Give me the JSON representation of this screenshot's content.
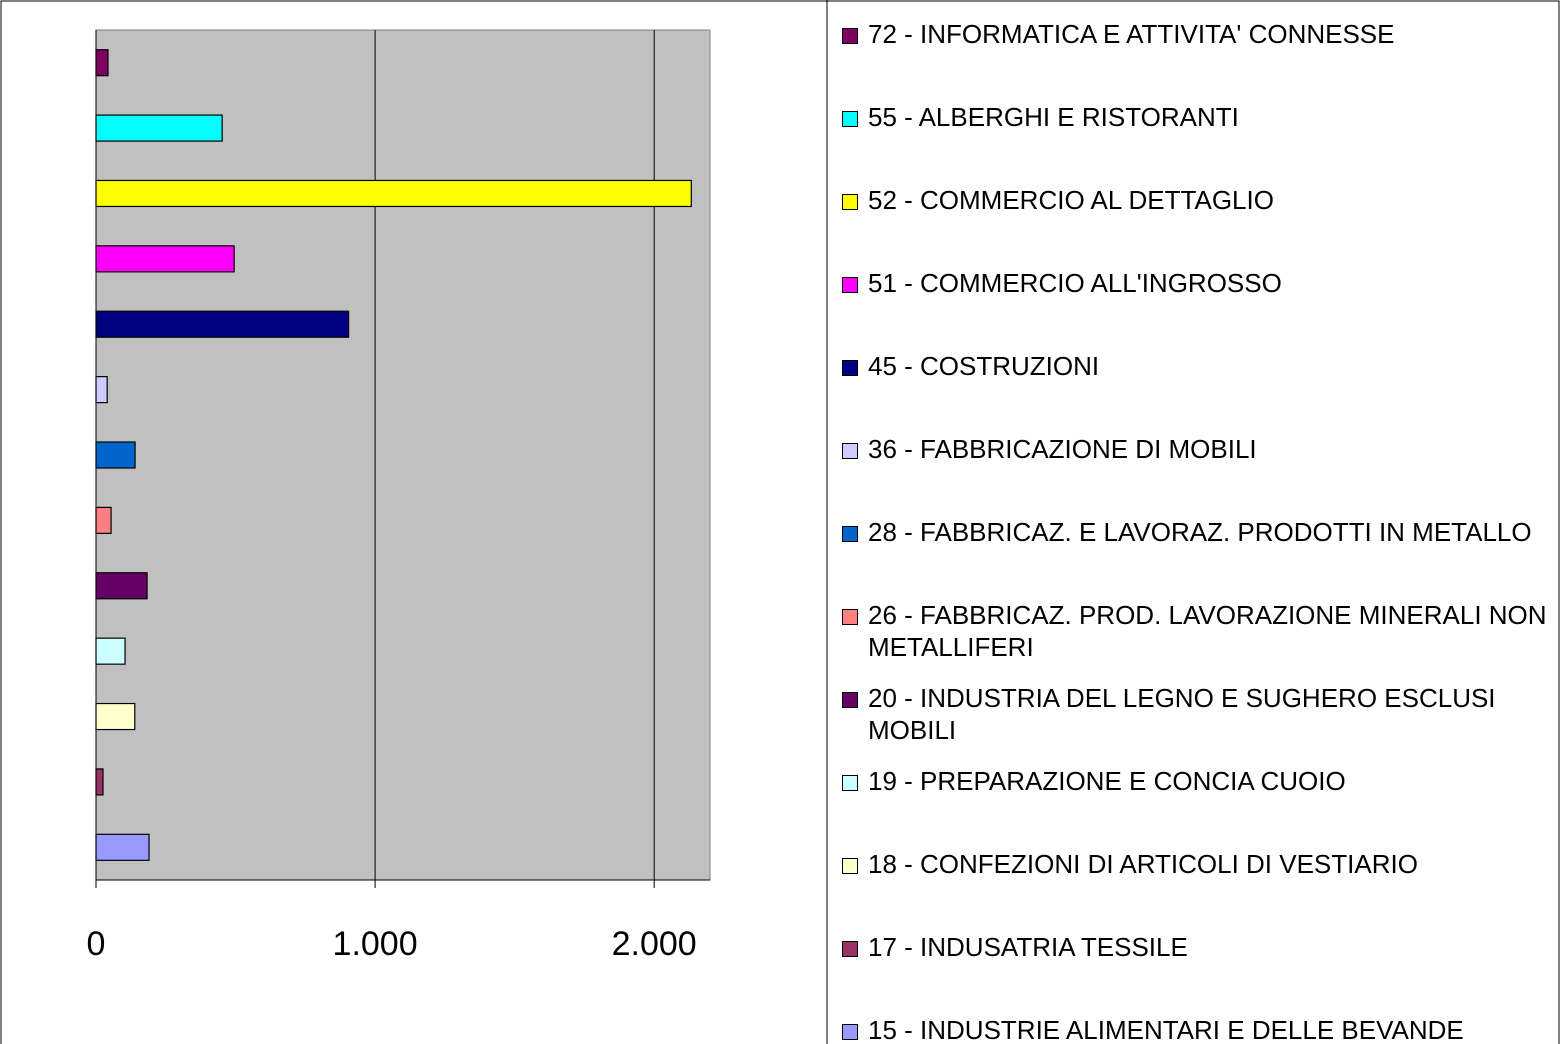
{
  "chart_data": {
    "type": "bar",
    "orientation": "horizontal",
    "categories": [
      "72 - INFORMATICA E ATTIVITA' CONNESSE",
      "55 - ALBERGHI E RISTORANTI",
      "52 - COMMERCIO AL DETTAGLIO",
      "51 - COMMERCIO ALL'INGROSSO",
      "45 - COSTRUZIONI",
      "36 - FABBRICAZIONE DI MOBILI",
      "28 - FABBRICAZ. E LAVORAZ. PRODOTTI IN METALLO",
      "26 - FABBRICAZ. PROD. LAVORAZIONE MINERALI NON METALLIFERI",
      "20 - INDUSTRIA DEL LEGNO E SUGHERO ESCLUSI MOBILI",
      "19 - PREPARAZIONE E CONCIA CUOIO",
      "18 - CONFEZIONI DI ARTICOLI DI VESTIARIO",
      "17 - INDUSATRIA TESSILE",
      "15 - INDUSTRIE ALIMENTARI E DELLE BEVANDE"
    ],
    "values": [
      43,
      452,
      2133,
      495,
      905,
      40,
      140,
      54,
      183,
      104,
      139,
      25,
      190
    ],
    "colors": [
      "#800060",
      "#00FFFF",
      "#FFFF00",
      "#FF00FF",
      "#000080",
      "#CCCCFF",
      "#0066CC",
      "#FF8080",
      "#660066",
      "#CCFFFF",
      "#FFFFCC",
      "#993366",
      "#9999FF"
    ],
    "xlim": [
      0,
      2200
    ],
    "xticks": [
      0,
      {
        "value": 1000,
        "label": "1.000"
      },
      {
        "value": 2000,
        "label": "2.000"
      }
    ],
    "grid": true,
    "legend": "right"
  }
}
